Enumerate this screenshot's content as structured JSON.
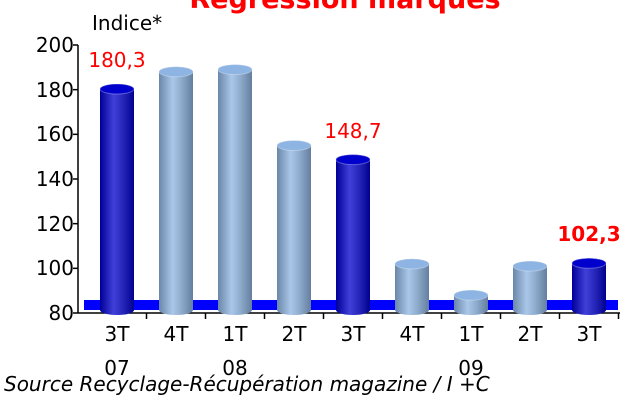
{
  "chart_data": {
    "type": "bar",
    "title": "Régression marques",
    "y_label": "Indice*",
    "source": "Source Recyclage-Récupération magazine / I +C",
    "categories": [
      "3T\n07",
      "4T",
      "1T\n08",
      "2T",
      "3T",
      "4T",
      "1T\n09",
      "2T",
      "3T"
    ],
    "values": [
      180.3,
      188,
      189,
      155,
      148.7,
      102,
      88,
      101,
      102.3
    ],
    "value_labels": [
      "180,3",
      null,
      null,
      null,
      "148,7",
      null,
      null,
      null,
      "102,3"
    ],
    "colors": [
      "#0000cc",
      "#8db4e2",
      "#8db4e2",
      "#8db4e2",
      "#0000cc",
      "#8db4e2",
      "#8db4e2",
      "#8db4e2",
      "#0000cc"
    ],
    "label_color": "#ff0000",
    "ylim": [
      80,
      200
    ],
    "yticks": [
      80,
      100,
      120,
      140,
      160,
      180,
      200
    ]
  }
}
